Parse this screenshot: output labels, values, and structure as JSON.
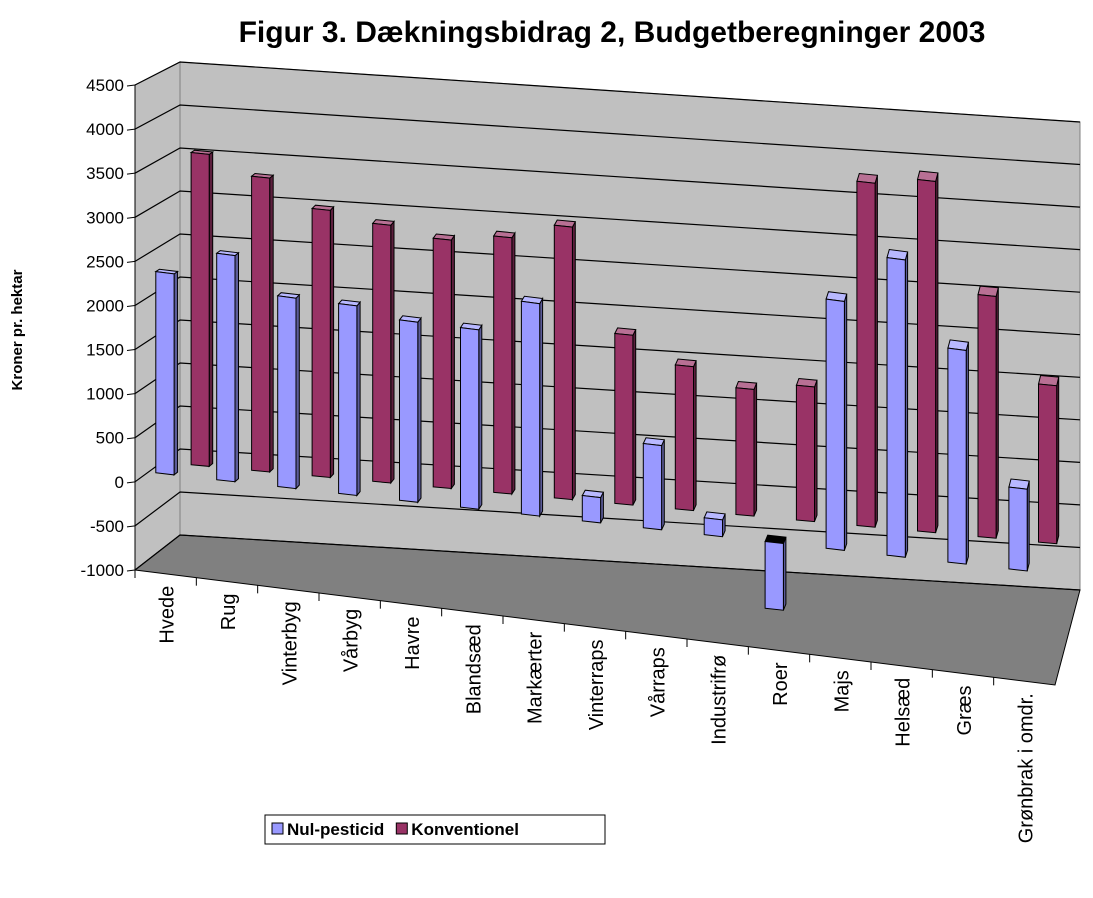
{
  "chart_data": {
    "type": "bar3d",
    "title": "Figur 3. Dækningsbidrag 2, Budgetberegninger 2003",
    "y_label": "Kroner pr. hektar",
    "categories": [
      "Hvede",
      "Rug",
      "Vinterbyg",
      "Vårbyg",
      "Havre",
      "Blandsæd",
      "Markærter",
      "Vinterraps",
      "Vårraps",
      "Industrifrø",
      "Roer",
      "Majs",
      "Helsæd",
      "Græs",
      "Grønbrak i omdr."
    ],
    "series": [
      {
        "name": "Nul-pesticid",
        "color": "#9999ff",
        "values": [
          2300,
          2600,
          2200,
          2200,
          2100,
          2100,
          2500,
          300,
          1000,
          200,
          -800,
          3000,
          3600,
          2600,
          1000
        ]
      },
      {
        "name": "Konventionel",
        "color": "#993366",
        "values": [
          3600,
          3400,
          3100,
          3000,
          2900,
          3000,
          3200,
          2000,
          1700,
          1500,
          1600,
          4100,
          4200,
          2900,
          1900
        ]
      }
    ],
    "ylim": [
      -1000,
      4500
    ],
    "yticks": [
      -1000,
      -500,
      0,
      500,
      1000,
      1500,
      2000,
      2500,
      3000,
      3500,
      4000,
      4500
    ],
    "grid": true,
    "legend": "bottom"
  }
}
